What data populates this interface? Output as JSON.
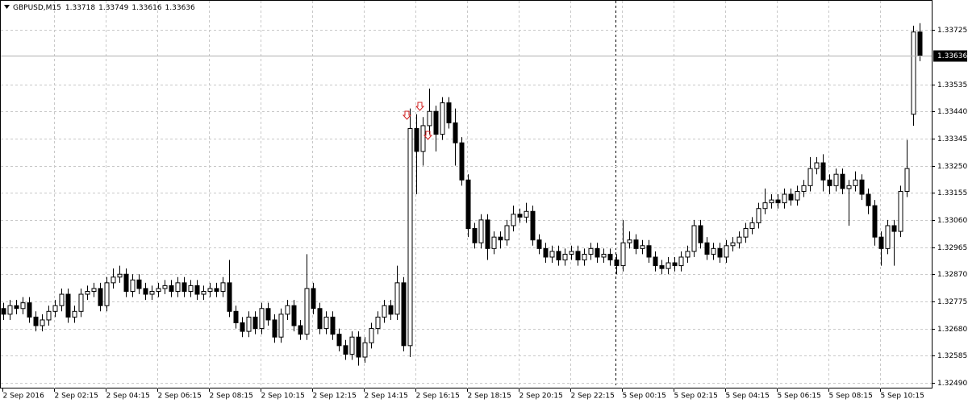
{
  "chart_data": {
    "type": "candlestick",
    "symbol": "GBPUSD,M15",
    "categories": [
      "2 Sep 2016",
      null,
      null,
      null,
      null,
      null,
      null,
      null,
      "2 Sep 02:15",
      null,
      null,
      null,
      null,
      null,
      null,
      null,
      "2 Sep 04:15",
      null,
      null,
      null,
      null,
      null,
      null,
      null,
      "2 Sep 06:15",
      null,
      null,
      null,
      null,
      null,
      null,
      null,
      "2 Sep 08:15",
      null,
      null,
      null,
      null,
      null,
      null,
      null,
      "2 Sep 10:15",
      null,
      null,
      null,
      null,
      null,
      null,
      null,
      "2 Sep 12:15",
      null,
      null,
      null,
      null,
      null,
      null,
      null,
      "2 Sep 14:15",
      null,
      null,
      null,
      null,
      null,
      null,
      null,
      "2 Sep 16:15",
      null,
      null,
      null,
      null,
      null,
      null,
      null,
      "2 Sep 18:15",
      null,
      null,
      null,
      null,
      null,
      null,
      null,
      "2 Sep 20:15",
      null,
      null,
      null,
      null,
      null,
      null,
      null,
      "2 Sep 22:15",
      null,
      null,
      null,
      null,
      null,
      null,
      null,
      "5 Sep 00:15",
      null,
      null,
      null,
      null,
      null,
      null,
      null,
      "5 Sep 02:15",
      null,
      null,
      null,
      null,
      null,
      null,
      null,
      "5 Sep 04:15",
      null,
      null,
      null,
      null,
      null,
      null,
      null,
      "5 Sep 06:15",
      null,
      null,
      null,
      null,
      null,
      null,
      null,
      "5 Sep 08:15",
      null,
      null,
      null,
      null,
      null,
      null,
      null,
      "5 Sep 10:15",
      null,
      null,
      null,
      null,
      null,
      null
    ],
    "open": [
      1.3275,
      1.3273,
      1.3276,
      1.3275,
      1.3277,
      1.3272,
      1.3269,
      1.3271,
      1.3274,
      1.3276,
      1.328,
      1.3272,
      1.3274,
      1.328,
      1.3281,
      1.3282,
      1.3276,
      1.3284,
      1.3286,
      1.3287,
      1.3281,
      1.3285,
      1.3282,
      1.328,
      1.3281,
      1.3282,
      1.3283,
      1.3281,
      1.3284,
      1.3281,
      1.3283,
      1.328,
      1.3281,
      1.3282,
      1.3281,
      1.3284,
      1.3274,
      1.327,
      1.3267,
      1.3272,
      1.3268,
      1.3275,
      1.3271,
      1.3265,
      1.3273,
      1.3276,
      1.3269,
      1.3266,
      1.3282,
      1.3275,
      1.3268,
      1.3272,
      1.3266,
      1.3262,
      1.3259,
      1.3265,
      1.3258,
      1.3263,
      1.3268,
      1.3272,
      1.3276,
      1.3273,
      1.3284,
      1.3262,
      1.3338,
      1.333,
      1.3339,
      1.3344,
      1.3336,
      1.3347,
      1.334,
      1.3333,
      1.332,
      1.3303,
      1.3298,
      1.3306,
      1.3296,
      1.33,
      1.3299,
      1.3304,
      1.3308,
      1.3307,
      1.3309,
      1.3299,
      1.3296,
      1.3293,
      1.3295,
      1.3292,
      1.3294,
      1.3295,
      1.3292,
      1.3294,
      1.3296,
      1.3293,
      1.3294,
      1.3292,
      1.329,
      1.3298,
      1.3299,
      1.3296,
      1.3297,
      1.3293,
      1.329,
      1.3289,
      1.3291,
      1.329,
      1.3293,
      1.3295,
      1.3304,
      1.3298,
      1.3294,
      1.3296,
      1.3293,
      1.3297,
      1.3298,
      1.33,
      1.3303,
      1.3305,
      1.331,
      1.3312,
      1.3313,
      1.3312,
      1.3315,
      1.3313,
      1.3316,
      1.3318,
      1.3324,
      1.3326,
      1.332,
      1.3318,
      1.3322,
      1.3317,
      1.3318,
      1.332,
      1.3315,
      1.3311,
      1.33,
      1.3296,
      1.3304,
      1.3302,
      1.3316,
      1.3343,
      1.33718
    ],
    "high": [
      1.3277,
      1.3278,
      1.3278,
      1.3279,
      1.3279,
      1.3274,
      1.3273,
      1.3276,
      1.3278,
      1.3282,
      1.3282,
      1.3276,
      1.3282,
      1.3283,
      1.3284,
      1.3284,
      1.3286,
      1.3289,
      1.329,
      1.3289,
      1.3287,
      1.3287,
      1.3284,
      1.3283,
      1.3284,
      1.3285,
      1.3285,
      1.3286,
      1.3286,
      1.3285,
      1.3285,
      1.3283,
      1.3284,
      1.3284,
      1.3286,
      1.3292,
      1.3276,
      1.3272,
      1.3274,
      1.3274,
      1.3277,
      1.3277,
      1.3273,
      1.3275,
      1.3278,
      1.3278,
      1.3271,
      1.3294,
      1.3284,
      1.3277,
      1.3274,
      1.3274,
      1.3268,
      1.3264,
      1.3267,
      1.3267,
      1.3265,
      1.327,
      1.3274,
      1.3278,
      1.3278,
      1.329,
      1.3286,
      1.3345,
      1.3343,
      1.3342,
      1.3352,
      1.3346,
      1.3349,
      1.3349,
      1.3345,
      1.3335,
      1.3322,
      1.3305,
      1.3308,
      1.3308,
      1.3302,
      1.3302,
      1.3306,
      1.3311,
      1.331,
      1.3312,
      1.3311,
      1.3301,
      1.3298,
      1.3297,
      1.3297,
      1.3296,
      1.3297,
      1.3297,
      1.3296,
      1.3298,
      1.3298,
      1.3296,
      1.3296,
      1.3294,
      1.3306,
      1.3302,
      1.3301,
      1.3299,
      1.3299,
      1.3295,
      1.3292,
      1.3293,
      1.3293,
      1.3295,
      1.3297,
      1.3306,
      1.3306,
      1.33,
      1.3298,
      1.3298,
      1.3299,
      1.33,
      1.3302,
      1.3305,
      1.3307,
      1.3312,
      1.3317,
      1.3315,
      1.3315,
      1.3317,
      1.3317,
      1.3318,
      1.332,
      1.3328,
      1.3328,
      1.3329,
      1.3322,
      1.3324,
      1.3324,
      1.332,
      1.3323,
      1.3322,
      1.3317,
      1.3313,
      1.3302,
      1.3306,
      1.3306,
      1.3318,
      1.3334,
      1.3374,
      1.33749
    ],
    "low": [
      1.3271,
      1.3271,
      1.3273,
      1.3273,
      1.327,
      1.3267,
      1.3267,
      1.3269,
      1.3272,
      1.3274,
      1.327,
      1.327,
      1.3272,
      1.3278,
      1.3279,
      1.3274,
      1.3274,
      1.3282,
      1.3284,
      1.3279,
      1.3279,
      1.328,
      1.3278,
      1.3278,
      1.3279,
      1.328,
      1.3279,
      1.3279,
      1.3279,
      1.3279,
      1.3278,
      1.3278,
      1.3279,
      1.3279,
      1.3279,
      1.3272,
      1.3268,
      1.3265,
      1.3265,
      1.3266,
      1.3266,
      1.3269,
      1.3263,
      1.3263,
      1.3271,
      1.3267,
      1.3264,
      1.3264,
      1.3273,
      1.3266,
      1.3266,
      1.3264,
      1.326,
      1.3257,
      1.3257,
      1.3255,
      1.3256,
      1.3261,
      1.3266,
      1.327,
      1.3271,
      1.3271,
      1.326,
      1.3258,
      1.3315,
      1.3325,
      1.3336,
      1.333,
      1.3334,
      1.3338,
      1.3325,
      1.3318,
      1.33,
      1.3296,
      1.3296,
      1.3292,
      1.3294,
      1.3296,
      1.3297,
      1.3302,
      1.3305,
      1.3305,
      1.3297,
      1.3294,
      1.3291,
      1.3291,
      1.329,
      1.329,
      1.3292,
      1.329,
      1.329,
      1.3292,
      1.3291,
      1.3291,
      1.329,
      1.3287,
      1.3288,
      1.3296,
      1.3294,
      1.3294,
      1.3291,
      1.3288,
      1.3287,
      1.3287,
      1.3288,
      1.3288,
      1.3291,
      1.3293,
      1.3296,
      1.3292,
      1.3292,
      1.3291,
      1.3291,
      1.3295,
      1.3296,
      1.3298,
      1.3301,
      1.3303,
      1.3308,
      1.331,
      1.331,
      1.331,
      1.3311,
      1.3311,
      1.3314,
      1.3316,
      1.3322,
      1.3316,
      1.3315,
      1.3316,
      1.3315,
      1.3304,
      1.3316,
      1.3313,
      1.3308,
      1.3297,
      1.329,
      1.3294,
      1.329,
      1.33,
      1.3314,
      1.3339,
      1.33616
    ],
    "close": [
      1.3273,
      1.3276,
      1.3275,
      1.3277,
      1.3272,
      1.3269,
      1.3271,
      1.3274,
      1.3276,
      1.328,
      1.3272,
      1.3274,
      1.328,
      1.3281,
      1.3282,
      1.3276,
      1.3284,
      1.3286,
      1.3287,
      1.3281,
      1.3285,
      1.3282,
      1.328,
      1.3281,
      1.3282,
      1.3283,
      1.3281,
      1.3284,
      1.3281,
      1.3283,
      1.328,
      1.3281,
      1.3282,
      1.3281,
      1.3284,
      1.3274,
      1.327,
      1.3267,
      1.3272,
      1.3268,
      1.3275,
      1.3271,
      1.3265,
      1.3273,
      1.3276,
      1.3269,
      1.3266,
      1.3282,
      1.3275,
      1.3268,
      1.3272,
      1.3266,
      1.3262,
      1.3259,
      1.3265,
      1.3258,
      1.3263,
      1.3268,
      1.3272,
      1.3276,
      1.3273,
      1.3284,
      1.3262,
      1.3338,
      1.333,
      1.3339,
      1.3344,
      1.3336,
      1.3347,
      1.334,
      1.3333,
      1.332,
      1.3303,
      1.3298,
      1.3306,
      1.3296,
      1.33,
      1.3299,
      1.3304,
      1.3308,
      1.3307,
      1.3309,
      1.3299,
      1.3296,
      1.3293,
      1.3295,
      1.3292,
      1.3294,
      1.3295,
      1.3292,
      1.3294,
      1.3296,
      1.3293,
      1.3294,
      1.3292,
      1.329,
      1.3298,
      1.3299,
      1.3296,
      1.3297,
      1.3293,
      1.329,
      1.3289,
      1.3291,
      1.329,
      1.3293,
      1.3295,
      1.3304,
      1.3298,
      1.3294,
      1.3296,
      1.3293,
      1.3297,
      1.3298,
      1.33,
      1.3303,
      1.3305,
      1.331,
      1.3312,
      1.3313,
      1.3312,
      1.3315,
      1.3313,
      1.3316,
      1.3318,
      1.3324,
      1.3326,
      1.332,
      1.3318,
      1.3322,
      1.3317,
      1.3318,
      1.332,
      1.3315,
      1.3311,
      1.33,
      1.3296,
      1.3304,
      1.3302,
      1.3316,
      1.3324,
      1.33718,
      1.33636
    ],
    "ylim": [
      1.3247,
      1.3383
    ],
    "yticks": [
      1.33725,
      1.33535,
      {
        "value": 1.3344,
        "label": "1.33440"
      },
      1.33345,
      {
        "value": 1.3325,
        "label": "1.33250"
      },
      1.33155,
      {
        "value": 1.3306,
        "label": "1.33060"
      },
      1.32965,
      {
        "value": 1.3287,
        "label": "1.32870"
      },
      1.32775,
      {
        "value": 1.3268,
        "label": "1.32680"
      },
      1.32585,
      {
        "value": 1.3249,
        "label": "1.32490"
      }
    ],
    "grid": true,
    "up_color": "#ffffff",
    "down_color": "#000000"
  }
}
